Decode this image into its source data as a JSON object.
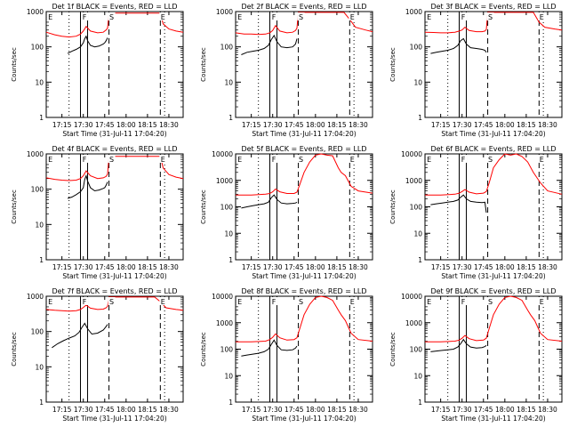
{
  "chart_data": [
    {
      "type": "line",
      "title": "Det 1f BLACK = Events, RED = LLD",
      "ylabel": "Counts/sec",
      "xlabel": "Start Time (31-Jul-11 17:04:20)",
      "yscale": "log",
      "ylim": [
        1,
        1000
      ],
      "yticks": [
        "1",
        "10",
        "100",
        "1000"
      ],
      "xticks": [
        "17:15",
        "17:30",
        "17:45",
        "18:00",
        "18:15",
        "18:30"
      ],
      "markers": [
        "E",
        "F",
        "S",
        "E"
      ],
      "series": [
        {
          "name": "BLACK = Events",
          "color": "#000000",
          "x": [
            "17:19",
            "17:22",
            "17:25",
            "17:28",
            "17:30",
            "17:31",
            "17:32",
            "17:33",
            "17:35",
            "17:38",
            "17:41",
            "17:44",
            "17:45",
            "17:46",
            "17:47"
          ],
          "y": [
            65,
            75,
            85,
            100,
            130,
            170,
            200,
            150,
            110,
            100,
            105,
            120,
            130,
            150,
            180
          ]
        },
        {
          "name": "RED = LLD",
          "color": "#ff0000",
          "x": [
            "17:04",
            "17:10",
            "17:15",
            "17:20",
            "17:25",
            "17:28",
            "17:30",
            "17:32",
            "17:35",
            "17:40",
            "17:44",
            "17:46",
            "17:47",
            "17:48",
            "18:24",
            "18:26",
            "18:30",
            "18:35",
            "18:40"
          ],
          "y": [
            260,
            220,
            200,
            190,
            200,
            230,
            280,
            380,
            280,
            250,
            260,
            300,
            340,
            900,
            900,
            450,
            320,
            280,
            260
          ]
        }
      ]
    },
    {
      "type": "line",
      "title": "Det 2f BLACK = Events, RED = LLD",
      "ylabel": "Counts/sec",
      "xlabel": "Start Time (31-Jul-11 17:04:20)",
      "yscale": "log",
      "ylim": [
        1,
        1000
      ],
      "yticks": [
        "1",
        "10",
        "100",
        "1000"
      ],
      "xticks": [
        "17:15",
        "17:30",
        "17:45",
        "18:00",
        "18:15",
        "18:30"
      ],
      "markers": [
        "E",
        "F",
        "S",
        "E"
      ],
      "series": [
        {
          "name": "BLACK = Events",
          "color": "#000000",
          "x": [
            "17:08",
            "17:12",
            "17:16",
            "17:20",
            "17:24",
            "17:27",
            "17:29",
            "17:31",
            "17:33",
            "17:36",
            "17:40",
            "17:44",
            "17:46",
            "17:47"
          ],
          "y": [
            60,
            70,
            75,
            80,
            90,
            110,
            160,
            210,
            140,
            100,
            95,
            100,
            120,
            170
          ]
        },
        {
          "name": "RED = LLD",
          "color": "#ff0000",
          "x": [
            "17:04",
            "17:10",
            "17:15",
            "17:20",
            "17:25",
            "17:28",
            "17:30",
            "17:32",
            "17:35",
            "17:40",
            "17:44",
            "17:46",
            "17:47",
            "17:48",
            "18:20",
            "18:24",
            "18:28",
            "18:35",
            "18:40"
          ],
          "y": [
            250,
            230,
            230,
            225,
            230,
            250,
            290,
            400,
            280,
            250,
            260,
            290,
            340,
            950,
            950,
            600,
            360,
            300,
            270
          ]
        }
      ]
    },
    {
      "type": "line",
      "title": "Det 3f BLACK = Events, RED = LLD",
      "ylabel": "Counts/sec",
      "xlabel": "Start Time (31-Jul-11 17:04:20)",
      "yscale": "log",
      "ylim": [
        1,
        1000
      ],
      "yticks": [
        "1",
        "10",
        "100",
        "1000"
      ],
      "xticks": [
        "17:15",
        "17:30",
        "17:45",
        "18:00",
        "18:15",
        "18:30"
      ],
      "markers": [
        "E",
        "F",
        "S",
        "E"
      ],
      "series": [
        {
          "name": "BLACK = Events",
          "color": "#000000",
          "x": [
            "17:08",
            "17:12",
            "17:16",
            "17:20",
            "17:24",
            "17:27",
            "17:29",
            "17:31",
            "17:33",
            "17:36",
            "17:40",
            "17:44",
            "17:46",
            "17:47"
          ],
          "y": [
            65,
            70,
            75,
            80,
            90,
            110,
            150,
            170,
            120,
            95,
            90,
            85,
            80,
            70
          ]
        },
        {
          "name": "RED = LLD",
          "color": "#ff0000",
          "x": [
            "17:04",
            "17:10",
            "17:15",
            "17:20",
            "17:25",
            "17:28",
            "17:30",
            "17:32",
            "17:35",
            "17:40",
            "17:44",
            "17:46",
            "17:47",
            "17:48",
            "18:20",
            "18:24",
            "18:28",
            "18:35",
            "18:40"
          ],
          "y": [
            260,
            255,
            250,
            250,
            260,
            280,
            300,
            360,
            290,
            270,
            270,
            280,
            310,
            950,
            950,
            500,
            360,
            320,
            300
          ]
        }
      ]
    },
    {
      "type": "line",
      "title": "Det 4f BLACK = Events, RED = LLD",
      "ylabel": "Counts/sec",
      "xlabel": "Start Time (31-Jul-11 17:04:20)",
      "yscale": "log",
      "ylim": [
        1,
        1000
      ],
      "yticks": [
        "1",
        "10",
        "100",
        "1000"
      ],
      "xticks": [
        "17:15",
        "17:30",
        "17:45",
        "18:00",
        "18:15",
        "18:30"
      ],
      "markers": [
        "E",
        "F",
        "S",
        "E"
      ],
      "series": [
        {
          "name": "BLACK = Events",
          "color": "#000000",
          "x": [
            "17:19",
            "17:22",
            "17:25",
            "17:28",
            "17:30",
            "17:31",
            "17:32",
            "17:33",
            "17:35",
            "17:38",
            "17:41",
            "17:44",
            "17:45",
            "17:46",
            "17:47"
          ],
          "y": [
            55,
            60,
            70,
            85,
            110,
            190,
            240,
            170,
            110,
            90,
            95,
            105,
            110,
            130,
            160
          ]
        },
        {
          "name": "RED = LLD",
          "color": "#ff0000",
          "x": [
            "17:04",
            "17:10",
            "17:15",
            "17:20",
            "17:25",
            "17:28",
            "17:30",
            "17:32",
            "17:35",
            "17:40",
            "17:44",
            "17:46",
            "17:47",
            "17:48",
            "18:24",
            "18:26",
            "18:30",
            "18:35",
            "18:40"
          ],
          "y": [
            210,
            190,
            180,
            175,
            180,
            200,
            240,
            330,
            240,
            200,
            210,
            230,
            270,
            850,
            850,
            400,
            260,
            220,
            200
          ]
        }
      ]
    },
    {
      "type": "line",
      "title": "Det 5f BLACK = Events, RED = LLD",
      "ylabel": "Counts/sec",
      "xlabel": "Start Time (31-Jul-11 17:04:20)",
      "yscale": "log",
      "ylim": [
        1,
        10000
      ],
      "yticks": [
        "1",
        "10",
        "100",
        "1000",
        "10000"
      ],
      "xticks": [
        "17:15",
        "17:30",
        "17:45",
        "18:00",
        "18:15",
        "18:30"
      ],
      "markers": [
        "E",
        "F",
        "S",
        "E"
      ],
      "series": [
        {
          "name": "BLACK = Events",
          "color": "#000000",
          "x": [
            "17:08",
            "17:12",
            "17:16",
            "17:20",
            "17:24",
            "17:27",
            "17:29",
            "17:31",
            "17:33",
            "17:36",
            "17:40",
            "17:44",
            "17:46",
            "17:47"
          ],
          "y": [
            90,
            100,
            110,
            120,
            130,
            150,
            220,
            280,
            190,
            140,
            130,
            135,
            140,
            150
          ]
        },
        {
          "name": "RED = LLD",
          "color": "#ff0000",
          "x": [
            "17:04",
            "17:15",
            "17:25",
            "17:28",
            "17:30",
            "17:32",
            "17:35",
            "17:40",
            "17:45",
            "17:47",
            "17:49",
            "17:52",
            "17:56",
            "18:00",
            "18:04",
            "18:08",
            "18:12",
            "18:16",
            "18:18",
            "18:21",
            "18:25",
            "18:30",
            "18:40"
          ],
          "y": [
            280,
            280,
            300,
            320,
            370,
            470,
            370,
            320,
            320,
            360,
            700,
            2000,
            5000,
            9000,
            10000,
            9000,
            8500,
            3000,
            2000,
            1500,
            600,
            400,
            330
          ]
        }
      ]
    },
    {
      "type": "line",
      "title": "Det 6f BLACK = Events, RED = LLD",
      "ylabel": "Counts/sec",
      "xlabel": "Start Time (31-Jul-11 17:04:20)",
      "yscale": "log",
      "ylim": [
        1,
        10000
      ],
      "yticks": [
        "1",
        "10",
        "100",
        "1000",
        "10000"
      ],
      "xticks": [
        "17:15",
        "17:30",
        "17:45",
        "18:00",
        "18:15",
        "18:30"
      ],
      "markers": [
        "E",
        "F",
        "S",
        "E"
      ],
      "series": [
        {
          "name": "BLACK = Events",
          "color": "#000000",
          "x": [
            "17:08",
            "17:12",
            "17:16",
            "17:20",
            "17:24",
            "17:27",
            "17:29",
            "17:31",
            "17:33",
            "17:36",
            "17:40",
            "17:44",
            "17:46",
            "17:47"
          ],
          "y": [
            120,
            130,
            140,
            150,
            160,
            180,
            230,
            280,
            200,
            160,
            150,
            145,
            150,
            60
          ]
        },
        {
          "name": "RED = LLD",
          "color": "#ff0000",
          "x": [
            "17:04",
            "17:15",
            "17:25",
            "17:28",
            "17:30",
            "17:32",
            "17:35",
            "17:40",
            "17:45",
            "17:47",
            "17:49",
            "17:52",
            "17:56",
            "18:00",
            "18:04",
            "18:08",
            "18:12",
            "18:16",
            "18:20",
            "18:25",
            "18:30",
            "18:40"
          ],
          "y": [
            280,
            280,
            300,
            330,
            380,
            450,
            360,
            310,
            330,
            380,
            800,
            3000,
            6000,
            10000,
            9000,
            10000,
            8000,
            5000,
            2000,
            800,
            400,
            300
          ]
        }
      ]
    },
    {
      "type": "line",
      "title": "Det 7f BLACK = Events, RED = LLD",
      "ylabel": "Counts/sec",
      "xlabel": "Start Time (31-Jul-11 17:04:20)",
      "yscale": "log",
      "ylim": [
        1,
        1000
      ],
      "yticks": [
        "1",
        "10",
        "100",
        "1000"
      ],
      "xticks": [
        "17:15",
        "17:30",
        "17:45",
        "18:00",
        "18:15",
        "18:30"
      ],
      "markers": [
        "E",
        "F",
        "S",
        "E"
      ],
      "series": [
        {
          "name": "BLACK = Events",
          "color": "#000000",
          "x": [
            "17:08",
            "17:12",
            "17:16",
            "17:20",
            "17:24",
            "17:27",
            "17:29",
            "17:31",
            "17:33",
            "17:36",
            "17:40",
            "17:44",
            "17:46",
            "17:47"
          ],
          "y": [
            35,
            45,
            55,
            65,
            75,
            95,
            130,
            170,
            120,
            85,
            90,
            110,
            140,
            160
          ]
        },
        {
          "name": "RED = LLD",
          "color": "#ff0000",
          "x": [
            "17:04",
            "17:10",
            "17:15",
            "17:20",
            "17:25",
            "17:28",
            "17:30",
            "17:32",
            "17:35",
            "17:40",
            "17:44",
            "17:46",
            "17:47",
            "17:48",
            "18:20",
            "18:24",
            "18:28",
            "18:35",
            "18:40"
          ],
          "y": [
            420,
            400,
            390,
            380,
            390,
            420,
            480,
            560,
            460,
            420,
            430,
            470,
            520,
            950,
            950,
            700,
            470,
            420,
            400
          ]
        }
      ]
    },
    {
      "type": "line",
      "title": "Det 8f BLACK = Events, RED = LLD",
      "ylabel": "Counts/sec",
      "xlabel": "Start Time (31-Jul-11 17:04:20)",
      "yscale": "log",
      "ylim": [
        1,
        10000
      ],
      "yticks": [
        "1",
        "10",
        "100",
        "1000",
        "10000"
      ],
      "xticks": [
        "17:15",
        "17:30",
        "17:45",
        "18:00",
        "18:15",
        "18:30"
      ],
      "markers": [
        "E",
        "F",
        "S",
        "E"
      ],
      "series": [
        {
          "name": "BLACK = Events",
          "color": "#000000",
          "x": [
            "17:08",
            "17:12",
            "17:16",
            "17:20",
            "17:24",
            "17:27",
            "17:29",
            "17:31",
            "17:33",
            "17:36",
            "17:40",
            "17:44",
            "17:46",
            "17:47"
          ],
          "y": [
            55,
            60,
            65,
            70,
            80,
            100,
            150,
            220,
            140,
            95,
            90,
            95,
            110,
            130
          ]
        },
        {
          "name": "RED = LLD",
          "color": "#ff0000",
          "x": [
            "17:04",
            "17:15",
            "17:25",
            "17:28",
            "17:30",
            "17:32",
            "17:35",
            "17:40",
            "17:45",
            "17:47",
            "17:49",
            "17:52",
            "17:56",
            "18:00",
            "18:04",
            "18:08",
            "18:12",
            "18:16",
            "18:18",
            "18:21",
            "18:25",
            "18:30",
            "18:40"
          ],
          "y": [
            190,
            190,
            200,
            230,
            280,
            380,
            270,
            220,
            230,
            270,
            600,
            2000,
            5000,
            9000,
            10000,
            9000,
            7000,
            3000,
            2000,
            1200,
            400,
            230,
            200
          ]
        }
      ]
    },
    {
      "type": "line",
      "title": "Det 9f BLACK = Events, RED = LLD",
      "ylabel": "Counts/sec",
      "xlabel": "Start Time (31-Jul-11 17:04:20)",
      "yscale": "log",
      "ylim": [
        1,
        10000
      ],
      "yticks": [
        "1",
        "10",
        "100",
        "1000",
        "10000"
      ],
      "xticks": [
        "17:15",
        "17:30",
        "17:45",
        "18:00",
        "18:15",
        "18:30"
      ],
      "markers": [
        "E",
        "F",
        "S",
        "E"
      ],
      "series": [
        {
          "name": "BLACK = Events",
          "color": "#000000",
          "x": [
            "17:08",
            "17:12",
            "17:16",
            "17:20",
            "17:24",
            "17:27",
            "17:29",
            "17:31",
            "17:33",
            "17:36",
            "17:40",
            "17:44",
            "17:46",
            "17:47"
          ],
          "y": [
            80,
            85,
            90,
            95,
            100,
            120,
            160,
            230,
            160,
            120,
            110,
            115,
            125,
            140
          ]
        },
        {
          "name": "RED = LLD",
          "color": "#ff0000",
          "x": [
            "17:04",
            "17:15",
            "17:25",
            "17:28",
            "17:30",
            "17:32",
            "17:35",
            "17:40",
            "17:45",
            "17:47",
            "17:49",
            "17:52",
            "17:56",
            "18:00",
            "18:04",
            "18:08",
            "18:12",
            "18:16",
            "18:18",
            "18:21",
            "18:25",
            "18:30",
            "18:40"
          ],
          "y": [
            190,
            190,
            200,
            220,
            260,
            330,
            250,
            210,
            220,
            260,
            600,
            2000,
            5000,
            9000,
            10000,
            9000,
            7000,
            3000,
            2000,
            1200,
            400,
            230,
            200
          ]
        }
      ]
    }
  ]
}
